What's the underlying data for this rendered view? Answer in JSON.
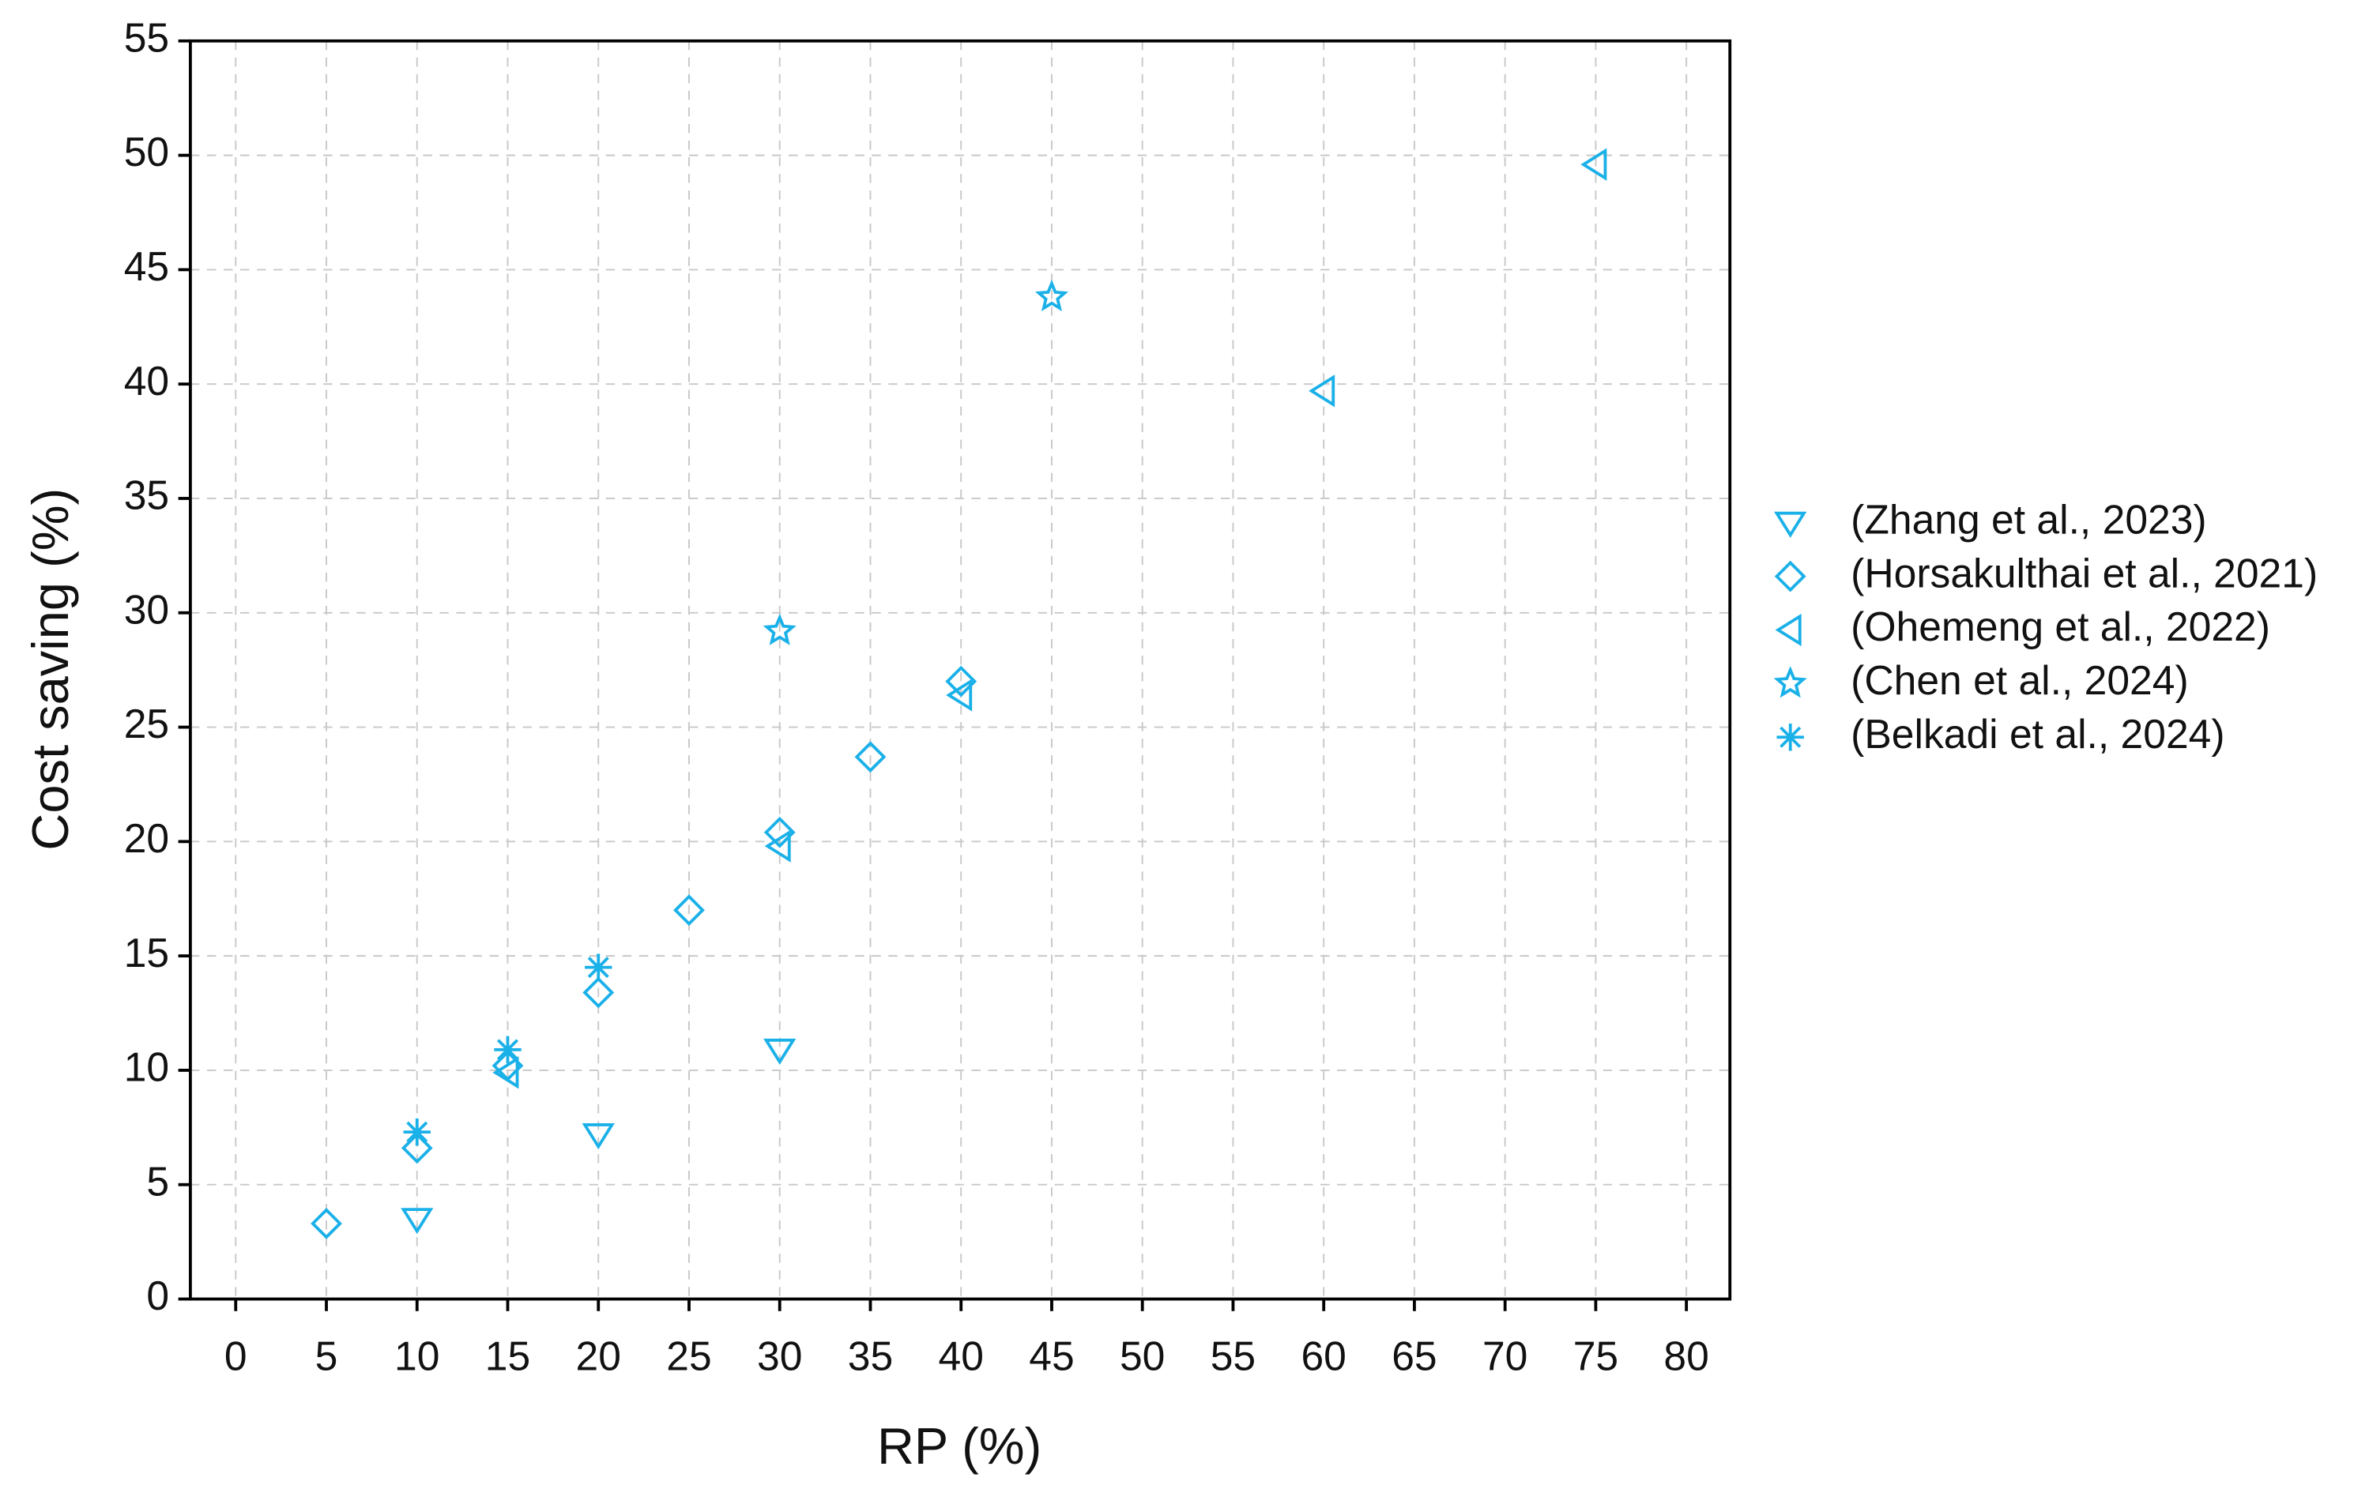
{
  "chart_data": {
    "type": "scatter",
    "x_label": "RP (%)",
    "y_label": "Cost saving (%)",
    "xlim": [
      -2.5,
      82.4
    ],
    "ylim": [
      0,
      55
    ],
    "xticks": [
      0,
      5,
      10,
      15,
      20,
      25,
      30,
      35,
      40,
      45,
      50,
      55,
      60,
      65,
      70,
      75,
      80
    ],
    "yticks": [
      0,
      5,
      10,
      15,
      20,
      25,
      30,
      35,
      40,
      45,
      50,
      55
    ],
    "grid": true,
    "legend": "right",
    "series": [
      {
        "name": "(Zhang et al., 2023)",
        "color": "#1ab0e8",
        "marker": "triangle-down",
        "x": [
          10,
          20,
          30
        ],
        "values": [
          3.5,
          7.2,
          10.9
        ]
      },
      {
        "name": "(Horsakulthai et al., 2021)",
        "color": "#1ab0e8",
        "marker": "diamond",
        "x": [
          5,
          10,
          15,
          20,
          25,
          30,
          35,
          40
        ],
        "values": [
          3.3,
          6.6,
          10.2,
          13.4,
          17.0,
          20.4,
          23.7,
          27.0
        ]
      },
      {
        "name": "(Ohemeng et al., 2022)",
        "color": "#1ab0e8",
        "marker": "triangle-left",
        "x": [
          15,
          30,
          40,
          60,
          75
        ],
        "values": [
          9.9,
          19.8,
          26.4,
          39.7,
          49.6
        ]
      },
      {
        "name": "(Chen et al., 2024)",
        "color": "#1ab0e8",
        "marker": "star",
        "x": [
          30,
          45
        ],
        "values": [
          29.2,
          43.8
        ]
      },
      {
        "name": "(Belkadi et al., 2024)",
        "color": "#1ab0e8",
        "marker": "asterisk",
        "x": [
          10,
          15,
          20
        ],
        "values": [
          7.3,
          10.9,
          14.5
        ]
      }
    ]
  }
}
